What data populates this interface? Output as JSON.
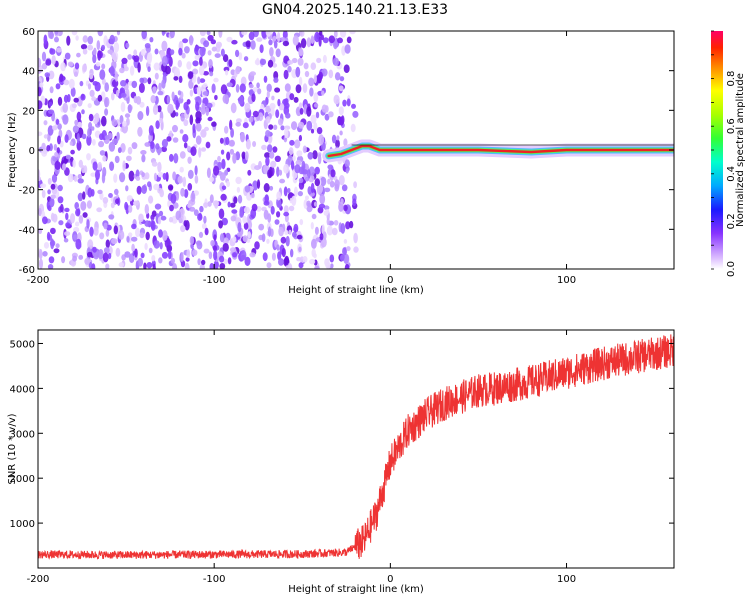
{
  "title": "GN04.2025.140.21.13.E33",
  "chart_data": [
    {
      "type": "heatmap",
      "xlabel": "Height of straight line (km)",
      "ylabel": "Frequency (Hz)",
      "xlim": [
        -200,
        161
      ],
      "ylim": [
        -60,
        60
      ],
      "xticks": [
        -200,
        -100,
        0,
        100
      ],
      "xtick_labels": [
        "-200",
        "-100",
        "0",
        "100"
      ],
      "yticks": [
        -60,
        -40,
        -20,
        0,
        20,
        40,
        60
      ],
      "ytick_labels": [
        "-60",
        "-40",
        "-20",
        "0",
        "20",
        "40",
        "60"
      ],
      "noise_region_x": [
        -200,
        -24
      ],
      "signal_line": [
        {
          "x": -35,
          "y": -3
        },
        {
          "x": -28,
          "y": -2
        },
        {
          "x": -22,
          "y": 0
        },
        {
          "x": -16,
          "y": 2
        },
        {
          "x": -12,
          "y": 2
        },
        {
          "x": -6,
          "y": 0
        },
        {
          "x": 0,
          "y": 0
        },
        {
          "x": 50,
          "y": 0
        },
        {
          "x": 80,
          "y": -1
        },
        {
          "x": 100,
          "y": 0
        },
        {
          "x": 161,
          "y": 0
        }
      ],
      "colorbar": {
        "label": "Normalized spectral amplitude",
        "range": [
          0,
          1
        ],
        "ticks": [
          0.0,
          0.2,
          0.4,
          0.6,
          0.8
        ],
        "tick_labels": [
          "0.0",
          "0.2",
          "0.4",
          "0.6",
          "0.8"
        ]
      }
    },
    {
      "type": "line",
      "xlabel": "Height of straight line (km)",
      "ylabel": "SNR (10 * v/v)",
      "xlim": [
        -200,
        161
      ],
      "ylim": [
        0,
        5300
      ],
      "xticks": [
        -200,
        -100,
        0,
        100
      ],
      "xtick_labels": [
        "-200",
        "-100",
        "0",
        "100"
      ],
      "yticks": [
        1000,
        2000,
        3000,
        4000,
        5000
      ],
      "ytick_labels": [
        "1000",
        "2000",
        "3000",
        "4000",
        "5000"
      ],
      "series": [
        {
          "color": "#ee3333",
          "points": [
            {
              "x": -200,
              "y": 300
            },
            {
              "x": -150,
              "y": 290
            },
            {
              "x": -100,
              "y": 300
            },
            {
              "x": -50,
              "y": 310
            },
            {
              "x": -25,
              "y": 350
            },
            {
              "x": -15,
              "y": 600
            },
            {
              "x": -8,
              "y": 1200
            },
            {
              "x": -3,
              "y": 1900
            },
            {
              "x": 0,
              "y": 2350
            },
            {
              "x": 5,
              "y": 2700
            },
            {
              "x": 10,
              "y": 3050
            },
            {
              "x": 20,
              "y": 3400
            },
            {
              "x": 30,
              "y": 3650
            },
            {
              "x": 40,
              "y": 3800
            },
            {
              "x": 50,
              "y": 3950
            },
            {
              "x": 60,
              "y": 4000
            },
            {
              "x": 80,
              "y": 4150
            },
            {
              "x": 100,
              "y": 4350
            },
            {
              "x": 120,
              "y": 4550
            },
            {
              "x": 140,
              "y": 4700
            },
            {
              "x": 161,
              "y": 4850
            }
          ]
        }
      ]
    }
  ]
}
